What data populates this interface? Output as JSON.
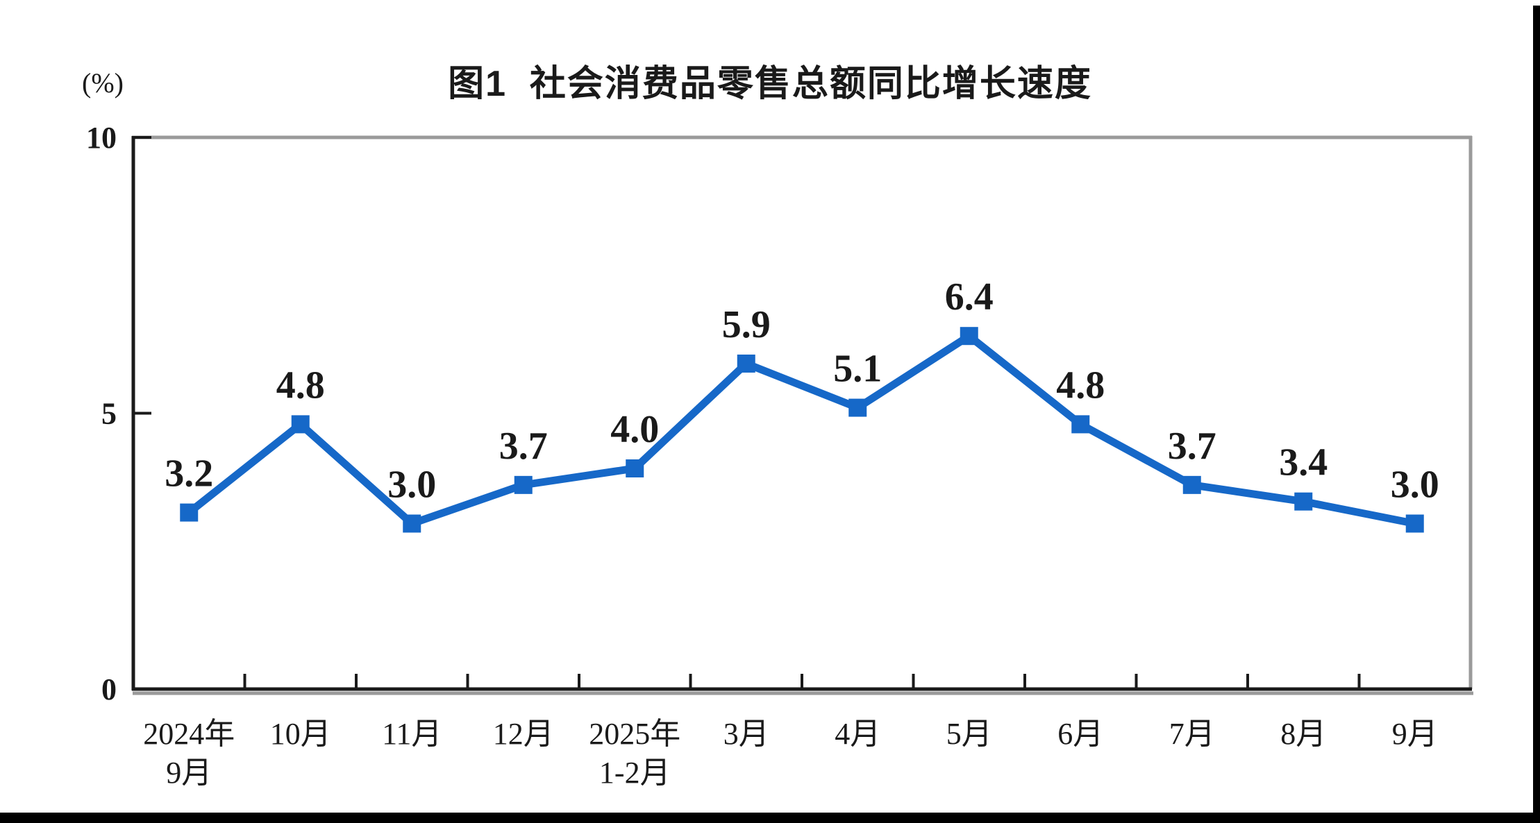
{
  "title": "图1  社会消费品零售总额同比增长速度",
  "unit": "(%)",
  "chart_data": {
    "type": "line",
    "title": "图1  社会消费品零售总额同比增长速度",
    "unit": "(%)",
    "categories": [
      [
        "2024年",
        "9月"
      ],
      [
        "10月"
      ],
      [
        "11月"
      ],
      [
        "12月"
      ],
      [
        "2025年",
        "1-2月"
      ],
      [
        "3月"
      ],
      [
        "4月"
      ],
      [
        "5月"
      ],
      [
        "6月"
      ],
      [
        "7月"
      ],
      [
        "8月"
      ],
      [
        "9月"
      ]
    ],
    "values": [
      3.2,
      4.8,
      3.0,
      3.7,
      4.0,
      5.9,
      5.1,
      6.4,
      4.8,
      3.7,
      3.4,
      3.0
    ],
    "labels": [
      "3.2",
      "4.8",
      "3.0",
      "3.7",
      "4.0",
      "5.9",
      "5.1",
      "6.4",
      "4.8",
      "3.7",
      "3.4",
      "3.0"
    ],
    "y_tick_values": [
      0,
      5,
      10
    ],
    "y_tick_labels": [
      "0",
      "5",
      "10"
    ],
    "ylim": [
      0,
      10
    ],
    "grid": false,
    "legend": "none",
    "marker": "square",
    "line_color": "#1668C8",
    "label_color": "#1a1a1a",
    "axis_color": "#1a1a1a",
    "frame_gray": "#9a9a9a"
  }
}
